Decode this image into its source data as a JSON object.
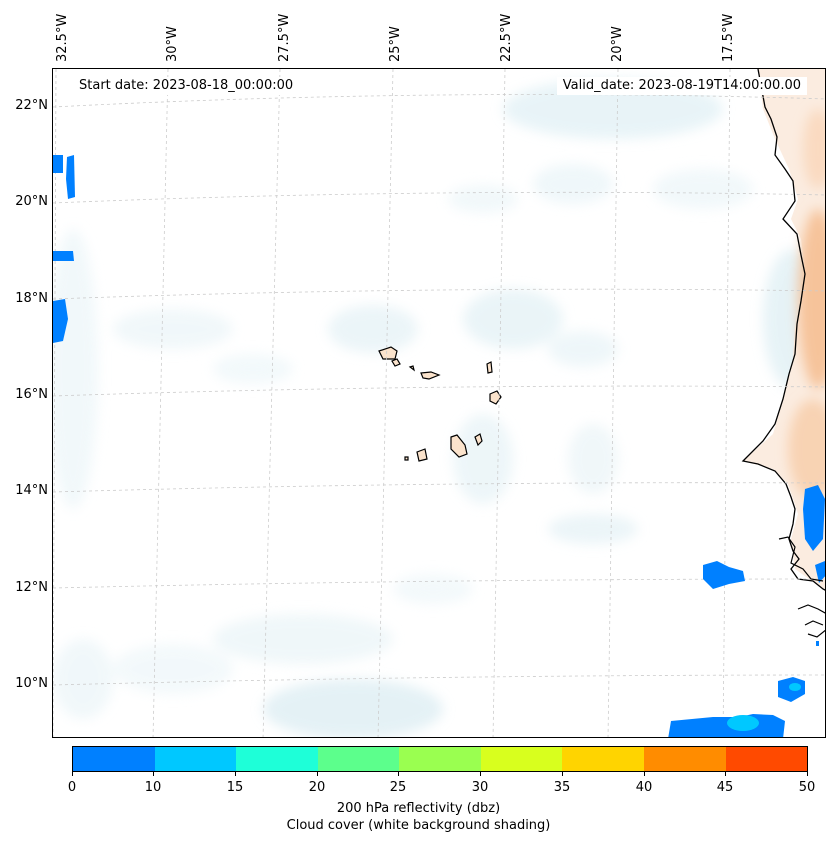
{
  "header": {
    "start_date": "Start date: 2023-08-18_00:00:00",
    "valid_date": "Valid_date: 2023-08-19T14:00:00.00"
  },
  "axes": {
    "lon_labels": [
      "32.5°W",
      "30°W",
      "27.5°W",
      "25°W",
      "22.5°W",
      "20°W",
      "17.5°W"
    ],
    "lat_labels": [
      "22°N",
      "20°N",
      "18°N",
      "16°N",
      "14°N",
      "12°N",
      "10°N"
    ]
  },
  "map": {
    "region": "Eastern Atlantic / Cape Verde / West African coast",
    "features": [
      "Cape Verde islands",
      "West African coastline",
      "reflectivity cells",
      "cloud cover shading"
    ]
  },
  "colorbar": {
    "ticks": [
      "0",
      "10",
      "15",
      "20",
      "25",
      "30",
      "35",
      "40",
      "45",
      "50"
    ],
    "colors": [
      "#0080ff",
      "#00c8ff",
      "#1effd8",
      "#5cff8c",
      "#9aff50",
      "#d8ff1e",
      "#ffd400",
      "#ff8c00",
      "#ff4a00"
    ],
    "label": "200 hPa reflectivity (dbz)",
    "sublabel": "Cloud cover (white background shading)"
  }
}
